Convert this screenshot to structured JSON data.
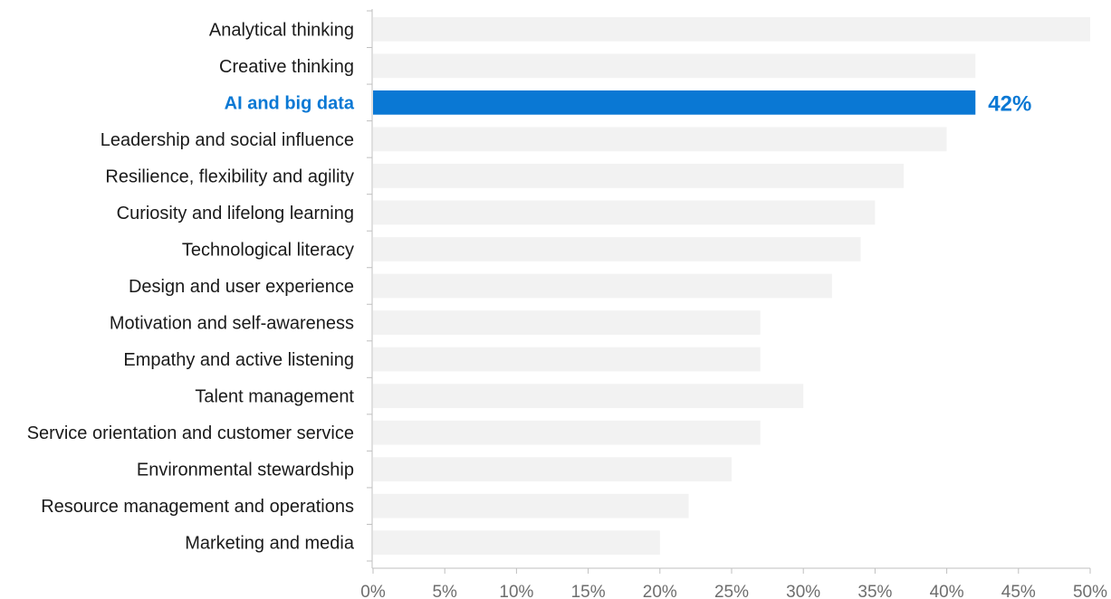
{
  "chart_data": {
    "type": "bar",
    "orientation": "horizontal",
    "categories": [
      "Analytical thinking",
      "Creative thinking",
      "AI and big data",
      "Leadership and social influence",
      "Resilience, flexibility and agility",
      "Curiosity and lifelong learning",
      "Technological literacy",
      "Design and user experience",
      "Motivation and self-awareness",
      "Empathy and active listening",
      "Talent management",
      "Service orientation and customer service",
      "Environmental stewardship",
      "Resource management and operations",
      "Marketing and media"
    ],
    "values": [
      50,
      42,
      42,
      40,
      37,
      35,
      34,
      32,
      27,
      27,
      30,
      27,
      25,
      22,
      20
    ],
    "highlight_index": 2,
    "highlight_label": "42%",
    "xlim": [
      0,
      50
    ],
    "x_ticks": [
      0,
      5,
      10,
      15,
      20,
      25,
      30,
      35,
      40,
      45,
      50
    ],
    "x_tick_labels": [
      "0%",
      "5%",
      "10%",
      "15%",
      "20%",
      "25%",
      "30%",
      "35%",
      "40%",
      "45%",
      "50%"
    ],
    "title": "",
    "xlabel": "",
    "ylabel": "",
    "grid": false,
    "colors": {
      "bar": "#f2f2f2",
      "highlight": "#0a78d4",
      "axis": "#bfbfbf"
    }
  }
}
